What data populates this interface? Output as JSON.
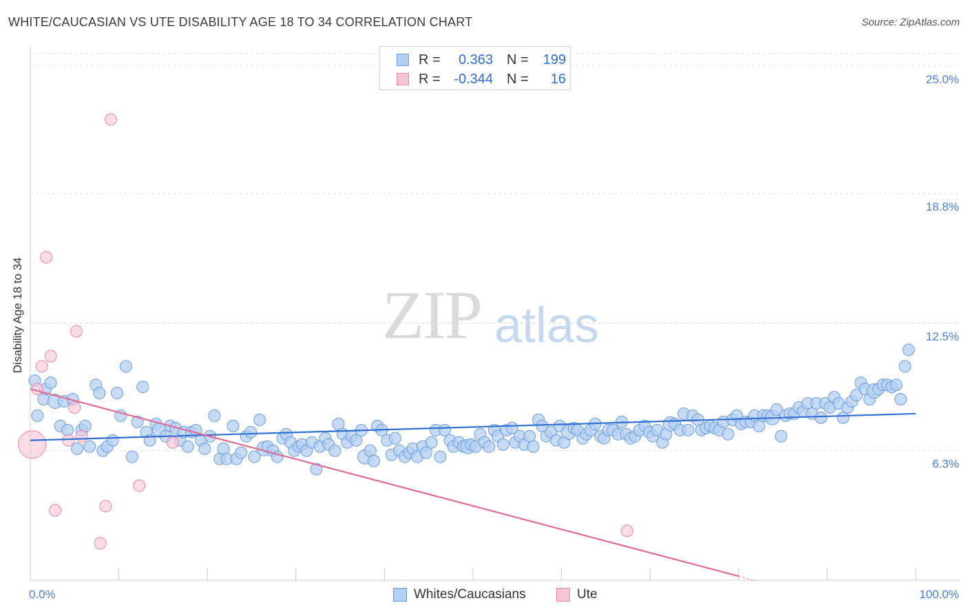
{
  "chart_data": {
    "type": "scatter",
    "title": "WHITE/CAUCASIAN VS UTE DISABILITY AGE 18 TO 34 CORRELATION CHART",
    "source": "Source: ZipAtlas.com",
    "xlabel": "",
    "ylabel": "Disability Age 18 to 34",
    "xlim": [
      0,
      100
    ],
    "ylim": [
      0,
      26.2
    ],
    "x_tick_labels": [
      "0.0%",
      "100.0%"
    ],
    "y_ticks": [
      {
        "value": 6.3,
        "label": "6.3%"
      },
      {
        "value": 12.5,
        "label": "12.5%"
      },
      {
        "value": 18.8,
        "label": "18.8%"
      },
      {
        "value": 25.0,
        "label": "25.0%"
      }
    ],
    "grid": true,
    "watermark": {
      "bold": "ZIP",
      "light": "atlas"
    },
    "legend": {
      "r_label": "R =",
      "n_label": "N =",
      "entries": [
        {
          "name": "Whites/Caucasians",
          "r": "0.363",
          "n": "199",
          "color": "#6a9de0",
          "fill": "#b5cff2"
        },
        {
          "name": "Ute",
          "r": "-0.344",
          "n": "16",
          "color": "#e887a8",
          "fill": "#f5c5d5"
        }
      ]
    },
    "series": [
      {
        "name": "Whites/Caucasians",
        "color": "#6a9de0",
        "fill": "#b5cff2",
        "trend": {
          "x": [
            0,
            100
          ],
          "y": [
            6.8,
            8.1
          ]
        },
        "points": [
          [
            0.5,
            9.7
          ],
          [
            0.8,
            8.0
          ],
          [
            1.5,
            8.8
          ],
          [
            1.7,
            9.3
          ],
          [
            2.3,
            9.6
          ],
          [
            2.8,
            8.7
          ],
          [
            3.4,
            7.5
          ],
          [
            3.8,
            8.7
          ],
          [
            4.2,
            7.3
          ],
          [
            4.8,
            8.8
          ],
          [
            5.3,
            6.4
          ],
          [
            5.8,
            7.3
          ],
          [
            6.2,
            7.5
          ],
          [
            6.7,
            6.5
          ],
          [
            7.4,
            9.5
          ],
          [
            7.8,
            9.1
          ],
          [
            8.2,
            6.3
          ],
          [
            8.7,
            6.5
          ],
          [
            9.3,
            6.8
          ],
          [
            9.8,
            9.1
          ],
          [
            10.2,
            8.0
          ],
          [
            10.8,
            10.4
          ],
          [
            11.5,
            6.0
          ],
          [
            12.1,
            7.7
          ],
          [
            12.7,
            9.4
          ],
          [
            13.1,
            7.2
          ],
          [
            13.5,
            6.8
          ],
          [
            14.2,
            7.6
          ],
          [
            14.6,
            7.3
          ],
          [
            15.3,
            7.0
          ],
          [
            15.8,
            7.5
          ],
          [
            16.4,
            7.4
          ],
          [
            16.9,
            6.8
          ],
          [
            17.3,
            7.2
          ],
          [
            17.8,
            6.5
          ],
          [
            18.2,
            7.2
          ],
          [
            18.7,
            7.3
          ],
          [
            19.3,
            6.8
          ],
          [
            19.7,
            6.4
          ],
          [
            20.3,
            7.0
          ],
          [
            20.8,
            8.0
          ],
          [
            21.4,
            5.9
          ],
          [
            21.8,
            6.4
          ],
          [
            22.2,
            5.9
          ],
          [
            22.9,
            7.5
          ],
          [
            23.3,
            5.9
          ],
          [
            23.8,
            6.2
          ],
          [
            24.4,
            7.0
          ],
          [
            24.9,
            7.2
          ],
          [
            25.3,
            6.0
          ],
          [
            25.9,
            7.8
          ],
          [
            26.4,
            6.4
          ],
          [
            26.8,
            6.5
          ],
          [
            27.4,
            6.3
          ],
          [
            27.9,
            6.0
          ],
          [
            28.5,
            6.9
          ],
          [
            28.9,
            7.1
          ],
          [
            29.4,
            6.7
          ],
          [
            29.8,
            6.3
          ],
          [
            30.3,
            6.5
          ],
          [
            30.7,
            6.6
          ],
          [
            31.2,
            6.3
          ],
          [
            31.8,
            6.7
          ],
          [
            32.3,
            5.4
          ],
          [
            32.7,
            6.5
          ],
          [
            33.3,
            6.9
          ],
          [
            33.7,
            6.6
          ],
          [
            34.4,
            6.3
          ],
          [
            34.8,
            7.6
          ],
          [
            35.3,
            7.1
          ],
          [
            35.8,
            6.7
          ],
          [
            36.3,
            7.0
          ],
          [
            36.8,
            6.8
          ],
          [
            37.4,
            7.3
          ],
          [
            37.8,
            6.0
          ],
          [
            38.4,
            6.3
          ],
          [
            38.8,
            5.8
          ],
          [
            39.2,
            7.5
          ],
          [
            39.7,
            7.3
          ],
          [
            40.3,
            6.8
          ],
          [
            40.8,
            6.1
          ],
          [
            41.2,
            6.9
          ],
          [
            41.7,
            6.3
          ],
          [
            42.3,
            6.0
          ],
          [
            42.8,
            6.2
          ],
          [
            43.2,
            6.4
          ],
          [
            43.7,
            6.0
          ],
          [
            44.3,
            6.5
          ],
          [
            44.7,
            6.2
          ],
          [
            45.3,
            6.7
          ],
          [
            45.8,
            7.3
          ],
          [
            46.3,
            6.0
          ],
          [
            46.8,
            7.3
          ],
          [
            47.4,
            6.8
          ],
          [
            47.8,
            6.5
          ],
          [
            48.4,
            6.7
          ],
          [
            48.9,
            6.5
          ],
          [
            49.4,
            6.5
          ],
          [
            49.8,
            6.6
          ],
          [
            50.3,
            6.5
          ],
          [
            50.8,
            7.1
          ],
          [
            51.3,
            6.7
          ],
          [
            51.8,
            6.5
          ],
          [
            52.4,
            7.3
          ],
          [
            52.8,
            7.0
          ],
          [
            53.4,
            6.6
          ],
          [
            53.8,
            7.3
          ],
          [
            54.4,
            7.4
          ],
          [
            54.8,
            6.7
          ],
          [
            55.3,
            7.0
          ],
          [
            55.8,
            6.6
          ],
          [
            56.4,
            7.0
          ],
          [
            56.8,
            6.5
          ],
          [
            57.4,
            7.8
          ],
          [
            57.8,
            7.5
          ],
          [
            58.3,
            7.0
          ],
          [
            58.8,
            7.2
          ],
          [
            59.4,
            6.8
          ],
          [
            59.8,
            7.5
          ],
          [
            60.3,
            6.7
          ],
          [
            60.8,
            7.2
          ],
          [
            61.4,
            7.4
          ],
          [
            61.8,
            7.3
          ],
          [
            62.4,
            6.9
          ],
          [
            62.8,
            7.1
          ],
          [
            63.3,
            7.3
          ],
          [
            63.8,
            7.6
          ],
          [
            64.4,
            7.0
          ],
          [
            64.8,
            6.9
          ],
          [
            65.3,
            7.3
          ],
          [
            65.8,
            7.3
          ],
          [
            66.4,
            7.1
          ],
          [
            66.8,
            7.7
          ],
          [
            67.3,
            7.1
          ],
          [
            67.8,
            6.9
          ],
          [
            68.3,
            7.0
          ],
          [
            68.8,
            7.3
          ],
          [
            69.4,
            7.5
          ],
          [
            69.9,
            7.2
          ],
          [
            70.3,
            7.0
          ],
          [
            70.8,
            7.3
          ],
          [
            71.4,
            6.7
          ],
          [
            71.8,
            7.1
          ],
          [
            72.3,
            7.6
          ],
          [
            72.8,
            7.6
          ],
          [
            73.4,
            7.3
          ],
          [
            73.8,
            8.1
          ],
          [
            74.3,
            7.3
          ],
          [
            74.8,
            8.0
          ],
          [
            75.4,
            7.8
          ],
          [
            75.8,
            7.3
          ],
          [
            76.3,
            7.4
          ],
          [
            76.8,
            7.5
          ],
          [
            77.3,
            7.4
          ],
          [
            77.8,
            7.3
          ],
          [
            78.3,
            7.7
          ],
          [
            78.8,
            7.1
          ],
          [
            79.3,
            7.8
          ],
          [
            79.8,
            8.0
          ],
          [
            80.3,
            7.6
          ],
          [
            80.8,
            7.7
          ],
          [
            81.4,
            7.7
          ],
          [
            81.8,
            8.0
          ],
          [
            82.3,
            7.5
          ],
          [
            82.8,
            8.0
          ],
          [
            83.3,
            8.0
          ],
          [
            83.8,
            7.9
          ],
          [
            84.3,
            8.3
          ],
          [
            84.8,
            7.0
          ],
          [
            85.3,
            8.0
          ],
          [
            85.8,
            8.1
          ],
          [
            86.3,
            8.1
          ],
          [
            86.8,
            8.4
          ],
          [
            87.3,
            8.2
          ],
          [
            87.8,
            8.6
          ],
          [
            88.3,
            8.1
          ],
          [
            88.8,
            8.6
          ],
          [
            89.3,
            7.9
          ],
          [
            89.8,
            8.6
          ],
          [
            90.3,
            8.4
          ],
          [
            90.8,
            8.9
          ],
          [
            91.3,
            8.6
          ],
          [
            91.8,
            7.9
          ],
          [
            92.3,
            8.4
          ],
          [
            92.8,
            8.7
          ],
          [
            93.3,
            9.0
          ],
          [
            93.8,
            9.6
          ],
          [
            94.3,
            9.3
          ],
          [
            94.8,
            8.8
          ],
          [
            95.3,
            9.2
          ],
          [
            95.8,
            9.3
          ],
          [
            96.3,
            9.5
          ],
          [
            96.8,
            9.5
          ],
          [
            97.3,
            9.4
          ],
          [
            97.8,
            9.5
          ],
          [
            98.3,
            8.8
          ],
          [
            98.8,
            10.4
          ],
          [
            99.2,
            11.2
          ]
        ]
      },
      {
        "name": "Ute",
        "color": "#e887a8",
        "fill": "#f5c5d5",
        "trend": {
          "x": [
            0,
            80
          ],
          "y": [
            9.3,
            0.2
          ]
        },
        "points": [
          [
            0.2,
            6.6
          ],
          [
            0.8,
            9.3
          ],
          [
            1.3,
            10.4
          ],
          [
            1.8,
            15.7
          ],
          [
            2.3,
            10.9
          ],
          [
            2.8,
            3.4
          ],
          [
            4.3,
            6.8
          ],
          [
            5.0,
            8.4
          ],
          [
            5.2,
            12.1
          ],
          [
            5.8,
            7.0
          ],
          [
            7.9,
            1.8
          ],
          [
            8.5,
            3.6
          ],
          [
            9.1,
            22.4
          ],
          [
            12.3,
            4.6
          ],
          [
            16.1,
            6.7
          ],
          [
            67.4,
            2.4
          ]
        ]
      }
    ]
  }
}
